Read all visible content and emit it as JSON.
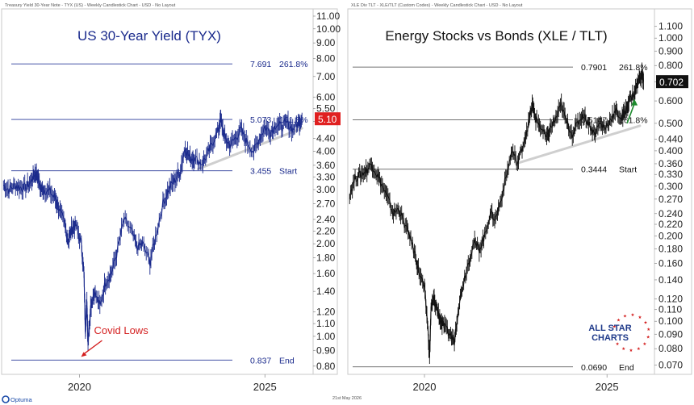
{
  "footer": {
    "brand": "Optuma",
    "date": "21st May 2026"
  },
  "logo": {
    "line1": "ALL STAR",
    "line2": "CHARTS"
  },
  "colors": {
    "left_series": "#1a2a8c",
    "right_series": "#111111",
    "left_badge_bg": "#e02020",
    "right_badge_bg": "#111111",
    "annotation": "#d42020",
    "arrow_up": "#1e8a2e",
    "trendline": "#cfcfcf",
    "logo_blue": "#1f3a8a",
    "logo_star": "#d42020"
  },
  "chart_data": [
    {
      "type": "line",
      "subtitle": "Treasury Yield 30-Year Note - TYX (US) - Weekly Candlestick Chart - USD - No Layout",
      "title": "US 30-Year Yield (TYX)",
      "y_scale": "log",
      "ylim": [
        0.78,
        11.2
      ],
      "xlim": [
        2017.9,
        2026.3
      ],
      "x_ticks": [
        {
          "label": "2020",
          "x": 2020
        },
        {
          "label": "2025",
          "x": 2025
        }
      ],
      "y_ticks": [
        "11.00",
        "10.00",
        "9.00",
        "8.00",
        "7.00",
        "6.00",
        "5.50",
        "5.00",
        "4.40",
        "4.00",
        "3.60",
        "3.30",
        "3.00",
        "2.70",
        "2.40",
        "2.20",
        "2.00",
        "1.80",
        "1.60",
        "1.40",
        "1.20",
        "1.10",
        "1.00",
        "0.90",
        "0.80"
      ],
      "last_value": "5.10",
      "levels": [
        {
          "value": 7.691,
          "label": "7.691",
          "name": "261.8%"
        },
        {
          "value": 5.073,
          "label": "5.073",
          "name": "161.8%"
        },
        {
          "value": 3.455,
          "label": "3.455",
          "name": "Start"
        },
        {
          "value": 0.837,
          "label": "0.837",
          "name": "End"
        }
      ],
      "trendline": [
        {
          "x": 2023.2,
          "y": 3.5
        },
        {
          "x": 2026.0,
          "y": 4.75
        }
      ],
      "annotation": {
        "text": "Covid Lows",
        "x": 2020.0,
        "y": 0.837
      },
      "series": [
        {
          "points": [
            [
              2017.95,
              3.1
            ],
            [
              2018.1,
              3.0
            ],
            [
              2018.25,
              3.1
            ],
            [
              2018.4,
              3.05
            ],
            [
              2018.55,
              3.05
            ],
            [
              2018.7,
              3.2
            ],
            [
              2018.8,
              3.4
            ],
            [
              2018.88,
              3.33
            ],
            [
              2018.95,
              3.0
            ],
            [
              2019.05,
              3.0
            ],
            [
              2019.2,
              2.95
            ],
            [
              2019.35,
              2.8
            ],
            [
              2019.45,
              2.6
            ],
            [
              2019.6,
              2.3
            ],
            [
              2019.7,
              2.05
            ],
            [
              2019.8,
              2.25
            ],
            [
              2019.9,
              2.3
            ],
            [
              2020.05,
              2.0
            ],
            [
              2020.12,
              1.6
            ],
            [
              2020.16,
              1.05
            ],
            [
              2020.2,
              1.3
            ],
            [
              2020.23,
              0.95
            ],
            [
              2020.3,
              1.25
            ],
            [
              2020.4,
              1.4
            ],
            [
              2020.55,
              1.25
            ],
            [
              2020.7,
              1.5
            ],
            [
              2020.85,
              1.6
            ],
            [
              2021.0,
              1.85
            ],
            [
              2021.2,
              2.4
            ],
            [
              2021.4,
              2.2
            ],
            [
              2021.55,
              1.95
            ],
            [
              2021.7,
              2.0
            ],
            [
              2021.9,
              1.75
            ],
            [
              2022.05,
              2.1
            ],
            [
              2022.25,
              2.7
            ],
            [
              2022.4,
              3.0
            ],
            [
              2022.55,
              3.2
            ],
            [
              2022.7,
              3.4
            ],
            [
              2022.85,
              4.1
            ],
            [
              2022.98,
              3.8
            ],
            [
              2023.1,
              3.8
            ],
            [
              2023.3,
              3.65
            ],
            [
              2023.45,
              3.9
            ],
            [
              2023.6,
              4.3
            ],
            [
              2023.75,
              4.7
            ],
            [
              2023.81,
              5.1
            ],
            [
              2023.92,
              4.4
            ],
            [
              2024.05,
              4.2
            ],
            [
              2024.2,
              4.4
            ],
            [
              2024.35,
              4.7
            ],
            [
              2024.5,
              4.3
            ],
            [
              2024.7,
              4.0
            ],
            [
              2024.85,
              4.4
            ],
            [
              2025.0,
              4.8
            ],
            [
              2025.15,
              4.6
            ],
            [
              2025.3,
              4.9
            ],
            [
              2025.45,
              4.8
            ],
            [
              2025.6,
              4.95
            ],
            [
              2025.75,
              4.7
            ],
            [
              2025.9,
              4.95
            ],
            [
              2026.0,
              5.1
            ]
          ]
        }
      ]
    },
    {
      "type": "line",
      "subtitle": "XLE Div TLT - XLE/TLT (Custom Codes) - Weekly Candlestick Chart - USD - No Layout",
      "title": "Energy Stocks vs Bonds (XLE / TLT)",
      "y_scale": "log",
      "ylim": [
        0.068,
        1.18
      ],
      "xlim": [
        2017.9,
        2026.3
      ],
      "x_ticks": [
        {
          "label": "2020",
          "x": 2020
        },
        {
          "label": "2025",
          "x": 2025
        }
      ],
      "y_ticks": [
        "1.100",
        "1.000",
        "0.900",
        "0.800",
        "0.700",
        "0.600",
        "0.500",
        "0.440",
        "0.400",
        "0.360",
        "0.330",
        "0.300",
        "0.270",
        "0.240",
        "0.220",
        "0.200",
        "0.180",
        "0.160",
        "0.140",
        "0.120",
        "0.110",
        "0.100",
        "0.090",
        "0.080",
        "0.070"
      ],
      "last_value": "0.702",
      "levels": [
        {
          "value": 0.7901,
          "label": "0.7901",
          "name": "261.8%"
        },
        {
          "value": 0.5147,
          "label": "0.5147",
          "name": "161.8%"
        },
        {
          "value": 0.3444,
          "label": "0.3444",
          "name": "Start"
        },
        {
          "value": 0.069,
          "label": "0.0690",
          "name": "End"
        }
      ],
      "trendline": [
        {
          "x": 2022.5,
          "y": 0.36
        },
        {
          "x": 2025.9,
          "y": 0.49
        }
      ],
      "arrow": {
        "from": {
          "x": 2025.55,
          "y": 0.5
        },
        "to": {
          "x": 2025.75,
          "y": 0.61
        }
      },
      "series": [
        {
          "points": [
            [
              2017.95,
              0.28
            ],
            [
              2018.1,
              0.32
            ],
            [
              2018.25,
              0.33
            ],
            [
              2018.4,
              0.34
            ],
            [
              2018.55,
              0.36
            ],
            [
              2018.7,
              0.33
            ],
            [
              2018.85,
              0.3
            ],
            [
              2019.0,
              0.27
            ],
            [
              2019.15,
              0.24
            ],
            [
              2019.3,
              0.25
            ],
            [
              2019.45,
              0.22
            ],
            [
              2019.6,
              0.2
            ],
            [
              2019.75,
              0.17
            ],
            [
              2019.85,
              0.15
            ],
            [
              2020.0,
              0.13
            ],
            [
              2020.08,
              0.1
            ],
            [
              2020.14,
              0.075
            ],
            [
              2020.18,
              0.11
            ],
            [
              2020.25,
              0.12
            ],
            [
              2020.35,
              0.11
            ],
            [
              2020.45,
              0.1
            ],
            [
              2020.55,
              0.095
            ],
            [
              2020.7,
              0.09
            ],
            [
              2020.82,
              0.085
            ],
            [
              2020.92,
              0.11
            ],
            [
              2021.05,
              0.135
            ],
            [
              2021.2,
              0.16
            ],
            [
              2021.35,
              0.19
            ],
            [
              2021.5,
              0.18
            ],
            [
              2021.65,
              0.2
            ],
            [
              2021.8,
              0.24
            ],
            [
              2021.95,
              0.23
            ],
            [
              2022.1,
              0.27
            ],
            [
              2022.25,
              0.33
            ],
            [
              2022.4,
              0.4
            ],
            [
              2022.55,
              0.36
            ],
            [
              2022.7,
              0.42
            ],
            [
              2022.85,
              0.5
            ],
            [
              2022.95,
              0.58
            ],
            [
              2023.05,
              0.52
            ],
            [
              2023.2,
              0.48
            ],
            [
              2023.35,
              0.44
            ],
            [
              2023.45,
              0.48
            ],
            [
              2023.6,
              0.52
            ],
            [
              2023.75,
              0.58
            ],
            [
              2023.9,
              0.5
            ],
            [
              2024.05,
              0.46
            ],
            [
              2024.2,
              0.5
            ],
            [
              2024.35,
              0.54
            ],
            [
              2024.5,
              0.5
            ],
            [
              2024.65,
              0.46
            ],
            [
              2024.8,
              0.5
            ],
            [
              2024.95,
              0.48
            ],
            [
              2025.1,
              0.52
            ],
            [
              2025.25,
              0.55
            ],
            [
              2025.4,
              0.52
            ],
            [
              2025.5,
              0.55
            ],
            [
              2025.6,
              0.6
            ],
            [
              2025.75,
              0.64
            ],
            [
              2025.85,
              0.7
            ],
            [
              2025.95,
              0.75
            ],
            [
              2026.0,
              0.702
            ]
          ]
        }
      ]
    }
  ]
}
